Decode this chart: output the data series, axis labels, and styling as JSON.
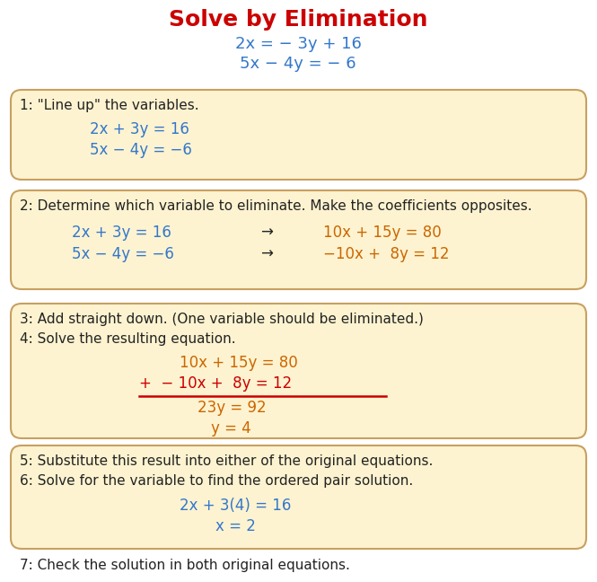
{
  "title": "Solve by Elimination",
  "title_color": "#cc0000",
  "title_fontsize": 18,
  "text_fontsize": 11,
  "eq_fontsize": 12,
  "bg_color": "#ffffff",
  "box_color": "#fdf3d0",
  "box_edge_color": "#c8a060",
  "blue_color": "#3377cc",
  "orange_color": "#cc6600",
  "dark_color": "#222222",
  "red_color": "#cc0000",
  "intro_lines": [
    "2x = − 3y + 16",
    "5x − 4y = − 6"
  ],
  "box1_step": "1: \"Line up\" the variables.",
  "box1_eqs": [
    "2x + 3y = 16",
    "5x − 4y = −6"
  ],
  "box2_step": "2: Determine which variable to eliminate. Make the coefficients opposites.",
  "box2_left": [
    "2x + 3y = 16",
    "5x − 4y = −6"
  ],
  "box2_arrow": "→",
  "box2_right": [
    "10x + 15y = 80",
    "−10x +  8y = 12"
  ],
  "box3_step1": "3: Add straight down. (One variable should be eliminated.)",
  "box3_step2": "4: Solve the resulting equation.",
  "box3_eq1": "10x + 15y = 80",
  "box3_eq2": "+  − 10x +  8y = 12",
  "box3_eq3": "23y = 92",
  "box3_eq4": "y = 4",
  "box4_step1": "5: Substitute this result into either of the original equations.",
  "box4_step2": "6: Solve for the variable to find the ordered pair solution.",
  "box4_eq1": "2x + 3(4) = 16",
  "box4_eq2": "x = 2",
  "step7": "7: Check the solution in both original equations."
}
